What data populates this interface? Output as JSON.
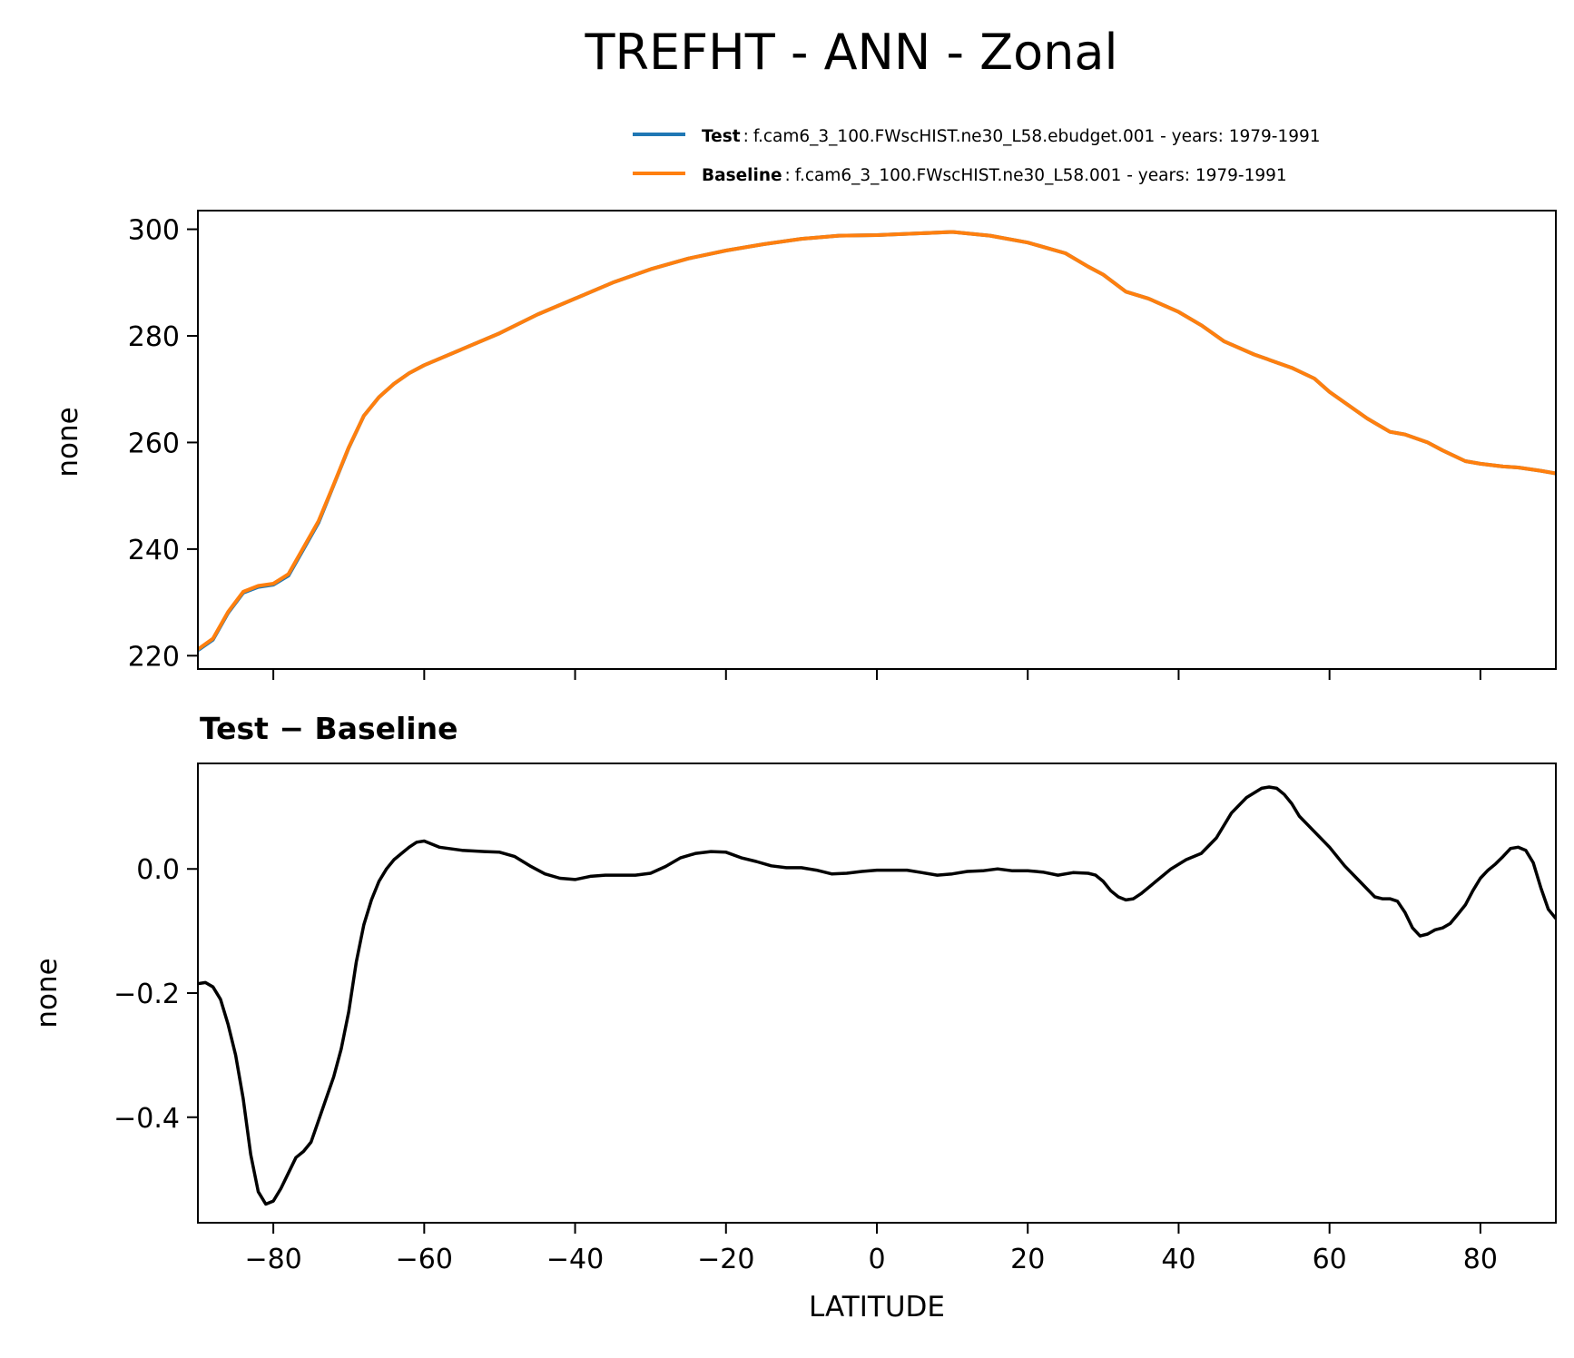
{
  "figure": {
    "title": "TREFHT - ANN - Zonal",
    "xlabel": "LATITUDE"
  },
  "legend": [
    {
      "label": "Test",
      "description": "f.cam6_3_100.FWscHIST.ne30_L58.ebudget.001 - years: 1979-1991",
      "color": "#1f77b4"
    },
    {
      "label": "Baseline",
      "description": "f.cam6_3_100.FWscHIST.ne30_L58.001 - years: 1979-1991",
      "color": "#ff7f0e"
    }
  ],
  "chart_data": [
    {
      "type": "line",
      "title": "",
      "xlabel": "",
      "ylabel": "none",
      "xlim": [
        -90,
        90
      ],
      "ylim": [
        217.5,
        303.5
      ],
      "xticks": [
        -80,
        -60,
        -40,
        -20,
        0,
        20,
        40,
        60,
        80
      ],
      "yticks": [
        220,
        240,
        260,
        280,
        300
      ],
      "ytick_labels": [
        "220",
        "240",
        "260",
        "280",
        "300"
      ],
      "grid": false,
      "legend_position": "above-right",
      "x": [
        -90,
        -88,
        -86,
        -84,
        -82,
        -80,
        -78,
        -76,
        -74,
        -72,
        -70,
        -68,
        -66,
        -64,
        -62,
        -60,
        -55,
        -50,
        -45,
        -40,
        -35,
        -30,
        -25,
        -20,
        -15,
        -10,
        -5,
        0,
        5,
        10,
        15,
        20,
        25,
        28,
        30,
        33,
        36,
        40,
        43,
        46,
        50,
        55,
        58,
        60,
        65,
        68,
        70,
        73,
        75,
        78,
        80,
        83,
        85,
        88,
        90
      ],
      "series": [
        {
          "name": "Test",
          "color": "#1f77b4",
          "values": [
            221.0,
            223.0,
            228.0,
            231.8,
            232.9,
            233.3,
            235.0,
            240.0,
            245.0,
            252.0,
            259.0,
            265.0,
            268.5,
            271.0,
            273.0,
            274.5,
            277.5,
            280.5,
            284.0,
            287.0,
            290.0,
            292.5,
            294.5,
            296.0,
            297.2,
            298.2,
            298.8,
            298.9,
            299.2,
            299.5,
            298.8,
            297.5,
            295.5,
            293.0,
            291.5,
            288.3,
            287.0,
            284.5,
            282.0,
            279.0,
            276.5,
            274.0,
            272.0,
            269.5,
            264.5,
            262.0,
            261.5,
            260.0,
            258.5,
            256.5,
            256.0,
            255.5,
            255.3,
            254.7,
            254.2
          ]
        },
        {
          "name": "Baseline",
          "color": "#ff7f0e",
          "values": [
            221.2,
            223.2,
            228.2,
            232.0,
            233.1,
            233.5,
            235.3,
            240.3,
            245.3,
            252.1,
            259.1,
            265.0,
            268.5,
            271.0,
            273.0,
            274.5,
            277.5,
            280.5,
            284.0,
            287.0,
            290.0,
            292.5,
            294.5,
            296.0,
            297.2,
            298.2,
            298.8,
            298.9,
            299.2,
            299.5,
            298.8,
            297.5,
            295.5,
            293.0,
            291.5,
            288.3,
            287.0,
            284.5,
            282.0,
            279.0,
            276.5,
            274.0,
            272.0,
            269.5,
            264.5,
            262.0,
            261.5,
            260.0,
            258.5,
            256.5,
            256.0,
            255.5,
            255.3,
            254.7,
            254.2
          ]
        }
      ]
    },
    {
      "type": "line",
      "title": "Test − Baseline",
      "xlabel": "LATITUDE",
      "ylabel": "none",
      "xlim": [
        -90,
        90
      ],
      "ylim": [
        -0.57,
        0.17
      ],
      "xticks": [
        -80,
        -60,
        -40,
        -20,
        0,
        20,
        40,
        60,
        80
      ],
      "xtick_labels": [
        "−80",
        "−60",
        "−40",
        "−20",
        "0",
        "20",
        "40",
        "60",
        "80"
      ],
      "yticks": [
        -0.4,
        -0.2,
        0.0
      ],
      "ytick_labels": [
        "−0.4",
        "−0.2",
        "0.0"
      ],
      "grid": false,
      "x": [
        -90,
        -89,
        -88,
        -87,
        -86,
        -85,
        -84,
        -83,
        -82,
        -81,
        -80,
        -79,
        -78,
        -77,
        -76,
        -75,
        -74,
        -73,
        -72,
        -71,
        -70,
        -69,
        -68,
        -67,
        -66,
        -65,
        -64,
        -63,
        -62,
        -61,
        -60,
        -58,
        -55,
        -52,
        -50,
        -48,
        -46,
        -44,
        -42,
        -40,
        -38,
        -36,
        -34,
        -32,
        -30,
        -28,
        -26,
        -24,
        -22,
        -20,
        -18,
        -16,
        -14,
        -12,
        -10,
        -8,
        -6,
        -4,
        -2,
        0,
        2,
        4,
        6,
        8,
        10,
        12,
        14,
        16,
        18,
        20,
        22,
        24,
        26,
        28,
        29,
        30,
        31,
        32,
        33,
        34,
        35,
        37,
        39,
        41,
        43,
        45,
        47,
        49,
        51,
        52,
        53,
        54,
        55,
        56,
        58,
        60,
        62,
        64,
        66,
        67,
        68,
        69,
        70,
        71,
        72,
        73,
        74,
        75,
        76,
        77,
        78,
        79,
        80,
        81,
        82,
        83,
        84,
        85,
        86,
        87,
        88,
        89,
        90
      ],
      "series": [
        {
          "name": "",
          "color": "#000000",
          "values": [
            -0.185,
            -0.183,
            -0.19,
            -0.21,
            -0.25,
            -0.3,
            -0.37,
            -0.46,
            -0.52,
            -0.54,
            -0.535,
            -0.515,
            -0.49,
            -0.465,
            -0.455,
            -0.44,
            -0.405,
            -0.37,
            -0.335,
            -0.29,
            -0.23,
            -0.15,
            -0.09,
            -0.05,
            -0.02,
            0.0,
            0.015,
            0.025,
            0.035,
            0.043,
            0.045,
            0.035,
            0.03,
            0.028,
            0.027,
            0.02,
            0.005,
            -0.008,
            -0.015,
            -0.017,
            -0.012,
            -0.01,
            -0.01,
            -0.01,
            -0.007,
            0.004,
            0.018,
            0.025,
            0.028,
            0.027,
            0.018,
            0.012,
            0.005,
            0.002,
            0.002,
            -0.002,
            -0.008,
            -0.007,
            -0.004,
            -0.002,
            -0.002,
            -0.002,
            -0.006,
            -0.01,
            -0.008,
            -0.004,
            -0.003,
            0.0,
            -0.003,
            -0.003,
            -0.005,
            -0.01,
            -0.006,
            -0.007,
            -0.01,
            -0.02,
            -0.035,
            -0.045,
            -0.05,
            -0.048,
            -0.04,
            -0.02,
            0.0,
            0.015,
            0.025,
            0.05,
            0.09,
            0.115,
            0.13,
            0.132,
            0.13,
            0.12,
            0.105,
            0.085,
            0.06,
            0.035,
            0.005,
            -0.02,
            -0.045,
            -0.048,
            -0.048,
            -0.052,
            -0.07,
            -0.095,
            -0.108,
            -0.105,
            -0.098,
            -0.095,
            -0.088,
            -0.073,
            -0.058,
            -0.035,
            -0.015,
            -0.002,
            0.008,
            0.02,
            0.033,
            0.035,
            0.03,
            0.01,
            -0.03,
            -0.065,
            -0.08
          ]
        }
      ]
    }
  ]
}
